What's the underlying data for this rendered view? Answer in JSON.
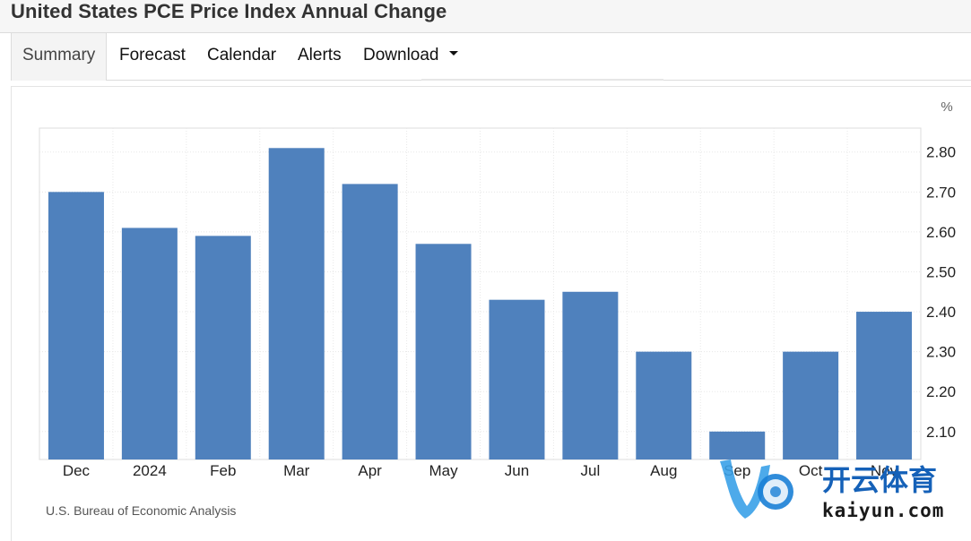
{
  "page_title": "United States PCE Price Index Annual Change",
  "tabs": [
    {
      "label": "Summary",
      "active": true
    },
    {
      "label": "Forecast",
      "active": false
    },
    {
      "label": "Calendar",
      "active": false
    },
    {
      "label": "Alerts",
      "active": false
    },
    {
      "label": "Download",
      "active": false,
      "dropdown": true
    }
  ],
  "source": "U.S. Bureau of Economic Analysis",
  "watermark": {
    "brand": "开云体育",
    "domain": "kaiyun.com"
  },
  "colors": {
    "bar": "#4f81bd",
    "grid": "#e8e8e8",
    "axis_text": "#222222"
  },
  "chart_data": {
    "type": "bar",
    "title": "",
    "unit_label": "%",
    "categories": [
      "Dec",
      "2024",
      "Feb",
      "Mar",
      "Apr",
      "May",
      "Jun",
      "Jul",
      "Aug",
      "Sep",
      "Oct",
      "Nov"
    ],
    "values": [
      2.7,
      2.61,
      2.59,
      2.81,
      2.72,
      2.57,
      2.43,
      2.45,
      2.3,
      2.1,
      2.3,
      2.4
    ],
    "ylim": [
      2.03,
      2.86
    ],
    "yticks": [
      "2.10",
      "2.20",
      "2.30",
      "2.40",
      "2.50",
      "2.60",
      "2.70",
      "2.80"
    ],
    "y_axis_side": "right",
    "grid": true
  }
}
